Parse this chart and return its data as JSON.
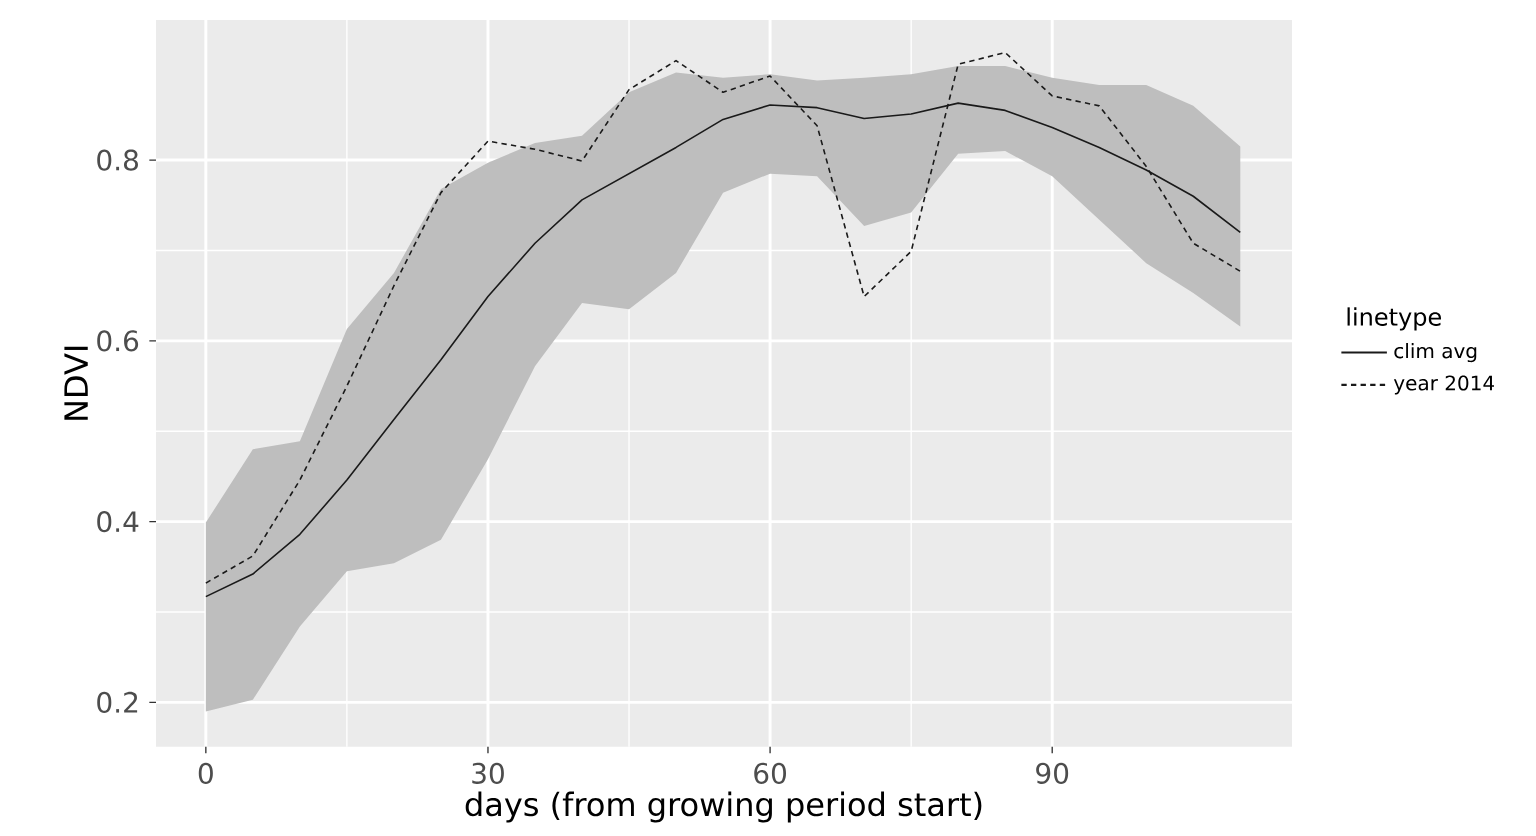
{
  "chart_data": {
    "type": "line",
    "xlabel": "days (from growing period start)",
    "ylabel": "NDVI",
    "legend_title": "linetype",
    "x": [
      0,
      5,
      10,
      15,
      20,
      25,
      30,
      35,
      40,
      45,
      50,
      55,
      60,
      65,
      70,
      75,
      80,
      85,
      90,
      95,
      100,
      105,
      110
    ],
    "xlim": [
      -5.3,
      115.5
    ],
    "ylim": [
      0.151,
      0.955
    ],
    "xticks": [
      0,
      30,
      60,
      90
    ],
    "yticks": [
      0.2,
      0.4,
      0.6,
      0.8
    ],
    "grid": true,
    "legend": "right",
    "marker": "none",
    "series": [
      {
        "name": "clim avg",
        "color": "#1a1a1a",
        "line_style": "solid",
        "values": [
          0.317,
          0.342,
          0.386,
          0.446,
          0.513,
          0.579,
          0.649,
          0.708,
          0.756,
          0.785,
          0.814,
          0.845,
          0.861,
          0.858,
          0.846,
          0.851,
          0.863,
          0.855,
          0.836,
          0.814,
          0.789,
          0.76,
          0.72
        ],
        "lower": [
          0.19,
          0.203,
          0.284,
          0.345,
          0.354,
          0.38,
          0.469,
          0.572,
          0.642,
          0.635,
          0.675,
          0.764,
          0.785,
          0.782,
          0.727,
          0.742,
          0.807,
          0.81,
          0.782,
          0.734,
          0.686,
          0.653,
          0.616
        ],
        "upper": [
          0.399,
          0.48,
          0.489,
          0.613,
          0.675,
          0.768,
          0.797,
          0.819,
          0.827,
          0.875,
          0.897,
          0.891,
          0.895,
          0.888,
          0.891,
          0.895,
          0.904,
          0.904,
          0.891,
          0.883,
          0.883,
          0.86,
          0.815
        ]
      },
      {
        "name": "year 2014",
        "color": "#1a1a1a",
        "line_style": "dashed",
        "values": [
          0.332,
          0.362,
          0.446,
          0.55,
          0.661,
          0.764,
          0.821,
          0.812,
          0.799,
          0.878,
          0.91,
          0.875,
          0.893,
          0.838,
          0.649,
          0.699,
          0.906,
          0.919,
          0.871,
          0.86,
          0.793,
          0.708,
          0.677
        ]
      }
    ]
  }
}
